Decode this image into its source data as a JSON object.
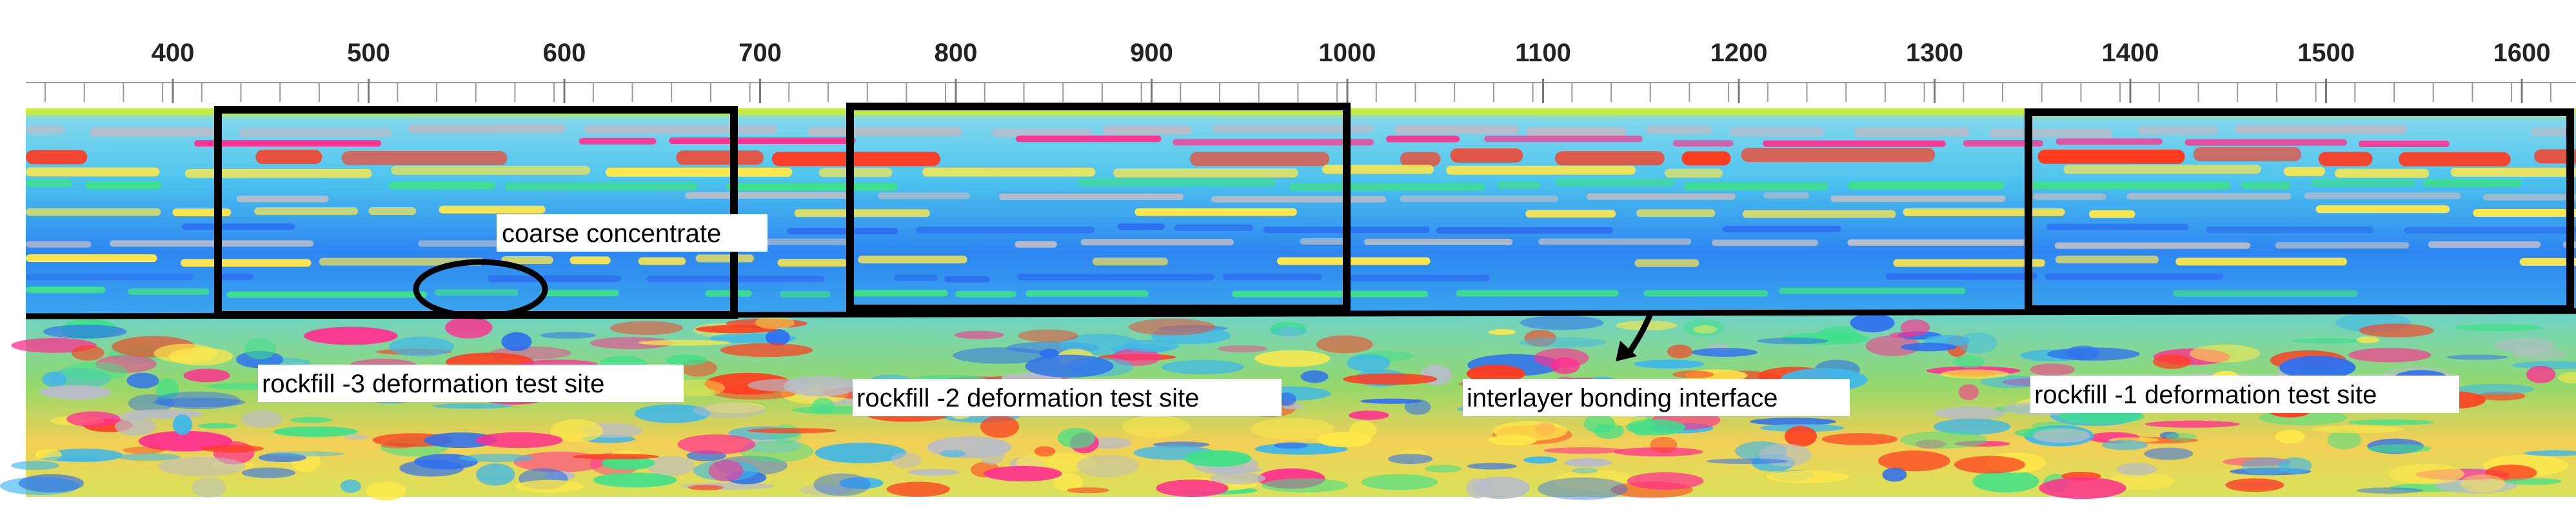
{
  "axis": {
    "ticks": [
      "400",
      "500",
      "600",
      "700",
      "800",
      "900",
      "1000",
      "1100",
      "1200",
      "1300",
      "1400",
      "1500",
      "1600"
    ]
  },
  "annotations": {
    "coarse": "coarse concentrate",
    "site3": "rockfill -3 deformation test site",
    "site2": "rockfill -2 deformation test site",
    "interface": "interlayer bonding interface",
    "site1": "rockfill -1 deformation test site"
  },
  "colors": {
    "background": "#ffffff",
    "frame": "#000000",
    "radar_base": "#3fb7ea",
    "band_red": "#ff3b1f",
    "band_yellow": "#ffe84a",
    "band_grey": "#b8bcc8",
    "band_magenta": "#ff2f8f",
    "band_green": "#3fe08a",
    "band_blue": "#2d6ff0"
  }
}
